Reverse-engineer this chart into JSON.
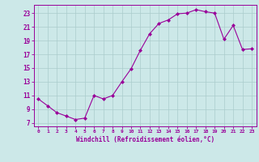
{
  "x": [
    0,
    1,
    2,
    3,
    4,
    5,
    6,
    7,
    8,
    9,
    10,
    11,
    12,
    13,
    14,
    15,
    16,
    17,
    18,
    19,
    20,
    21,
    22,
    23
  ],
  "y": [
    10.5,
    9.5,
    8.5,
    8.0,
    7.5,
    7.7,
    11.0,
    10.5,
    11.0,
    13.0,
    14.9,
    17.6,
    20.0,
    21.5,
    22.0,
    22.9,
    23.0,
    23.5,
    23.2,
    23.0,
    19.2,
    21.2,
    17.7,
    17.8
  ],
  "line_color": "#990099",
  "marker": "D",
  "marker_size": 2.0,
  "bg_color": "#cce8e8",
  "grid_color": "#aacccc",
  "xlabel": "Windchill (Refroidissement éolien,°C)",
  "xlabel_color": "#990099",
  "tick_color": "#990099",
  "yticks": [
    7,
    9,
    11,
    13,
    15,
    17,
    19,
    21,
    23
  ],
  "xticks": [
    0,
    1,
    2,
    3,
    4,
    5,
    6,
    7,
    8,
    9,
    10,
    11,
    12,
    13,
    14,
    15,
    16,
    17,
    18,
    19,
    20,
    21,
    22,
    23
  ],
  "ylim": [
    6.5,
    24.2
  ],
  "xlim": [
    -0.5,
    23.5
  ]
}
